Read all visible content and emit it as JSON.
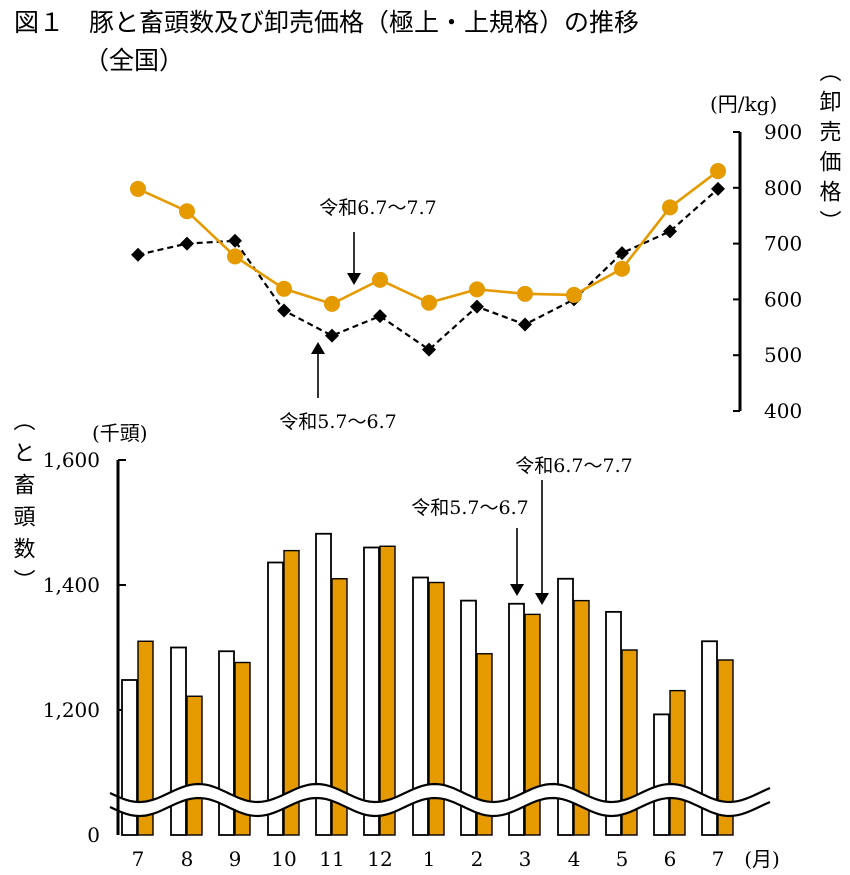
{
  "title_line1": "図１　豚と畜頭数及び卸売価格（極上・上規格）の推移",
  "title_line2": "（全国）",
  "colors": {
    "accent": "#E59A00",
    "black": "#000000",
    "white": "#ffffff"
  },
  "chart_data": [
    {
      "type": "line",
      "unit": "(円/kg)",
      "ylabel": "（卸売価格）",
      "ylim": [
        400,
        900
      ],
      "yticks": [
        "400",
        "500",
        "600",
        "700",
        "800",
        "900"
      ],
      "categories": [
        "7",
        "8",
        "9",
        "10",
        "11",
        "12",
        "1",
        "2",
        "3",
        "4",
        "5",
        "6",
        "7"
      ],
      "series": [
        {
          "name": "令和6.7〜7.7",
          "style": "orange-solid-circle",
          "values": [
            798,
            758,
            677,
            619,
            592,
            635,
            594,
            618,
            610,
            608,
            655,
            765,
            830
          ]
        },
        {
          "name": "令和5.7〜6.7",
          "style": "black-dashed-diamond",
          "values": [
            680,
            700,
            705,
            580,
            535,
            570,
            510,
            587,
            555,
            600,
            683,
            722,
            798
          ]
        }
      ],
      "annotations": [
        {
          "text": "令和6.7〜7.7",
          "category": "11"
        },
        {
          "text": "令和5.7〜6.7",
          "category": "10"
        }
      ]
    },
    {
      "type": "bar",
      "unit": "(千頭)",
      "ylabel": "（と畜頭数）",
      "yticks": [
        "0",
        "1,200",
        "1,400",
        "1,600"
      ],
      "xlabel": "(月)",
      "categories": [
        "7",
        "8",
        "9",
        "10",
        "11",
        "12",
        "1",
        "2",
        "3",
        "4",
        "5",
        "6",
        "7"
      ],
      "series": [
        {
          "name": "令和5.7〜6.7",
          "style": "white-outline",
          "values": [
            1248,
            1300,
            1294,
            1436,
            1482,
            1460,
            1412,
            1375,
            1370,
            1410,
            1357,
            1193,
            1310
          ]
        },
        {
          "name": "令和6.7〜7.7",
          "style": "orange-filled",
          "values": [
            1310,
            1222,
            1276,
            1455,
            1410,
            1462,
            1404,
            1290,
            1353,
            1375,
            1296,
            1231,
            1280
          ]
        }
      ],
      "annotations": [
        {
          "text": "令和6.7〜7.7",
          "category": "3"
        },
        {
          "text": "令和5.7〜6.7",
          "category": "3"
        }
      ]
    }
  ]
}
